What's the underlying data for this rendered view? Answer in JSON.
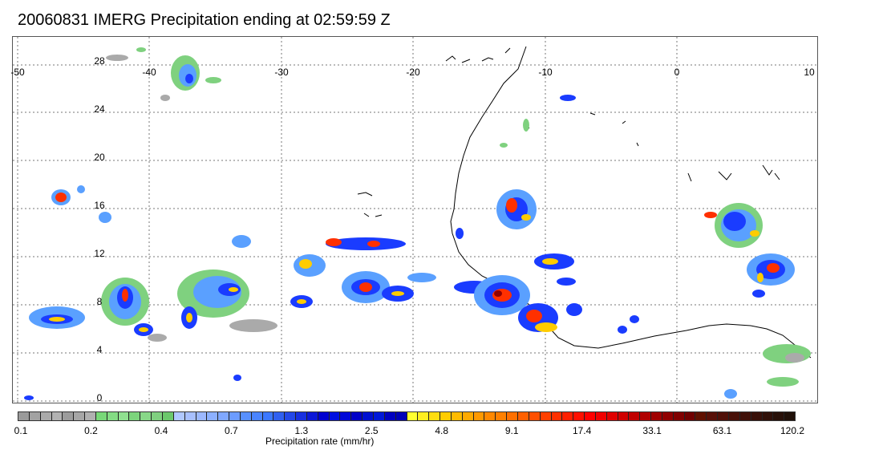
{
  "title": "20060831 IMERG Precipitation ending at 02:59:59 Z",
  "map": {
    "lon_labels": [
      "-50",
      "-40",
      "-30",
      "-20",
      "-10",
      "0",
      "10"
    ],
    "lat_labels": [
      "28",
      "24",
      "20",
      "16",
      "12",
      "8",
      "4",
      "0"
    ],
    "lon_range": [
      -50,
      10
    ],
    "lat_range": [
      -0.5,
      30
    ],
    "gridlines": "dotted"
  },
  "colorbar": {
    "label": "Precipitation rate (mm/hr)",
    "tick_labels": [
      "0.1",
      "0.2",
      "0.4",
      "0.7",
      "1.3",
      "2.5",
      "4.8",
      "9.1",
      "17.4",
      "33.1",
      "63.1",
      "120.2"
    ],
    "colors": [
      "#9a9a9a",
      "#a2a2a2",
      "#aaaaaa",
      "#b2b2b2",
      "#9c9c9c",
      "#a6a6a6",
      "#b0b0b0",
      "#78d878",
      "#84dc84",
      "#90e090",
      "#7cd47c",
      "#88d888",
      "#80d080",
      "#6cc86c",
      "#b0c8ff",
      "#a8c0ff",
      "#9cb8ff",
      "#8cb0ff",
      "#80a8ff",
      "#6c9cff",
      "#5890ff",
      "#4a84ff",
      "#3c78ff",
      "#3060f0",
      "#2448e8",
      "#1830e0",
      "#0c18d8",
      "#0000d0",
      "#0010e0",
      "#0008d8",
      "#0000c8",
      "#0010d0",
      "#0018d8",
      "#0000c0",
      "#0000b8",
      "#ffff30",
      "#ffee20",
      "#ffdd10",
      "#ffcc00",
      "#ffbb00",
      "#ffaa00",
      "#ff9900",
      "#ff8800",
      "#ff8000",
      "#ff7000",
      "#ff6000",
      "#ff5000",
      "#ff4000",
      "#ff3000",
      "#ff2000",
      "#ff1000",
      "#ff0000",
      "#f00000",
      "#e00000",
      "#d00000",
      "#c00000",
      "#b00000",
      "#a00000",
      "#900000",
      "#800000",
      "#700000",
      "#601000",
      "#581008",
      "#501008",
      "#481008",
      "#401008",
      "#381008",
      "#301008",
      "#281008",
      "#201008"
    ]
  },
  "colors": {
    "rain_light": "#7fd17f",
    "rain_blue": "#1a3cff",
    "rain_heavy": "#ff3000",
    "coast": "#000000"
  }
}
